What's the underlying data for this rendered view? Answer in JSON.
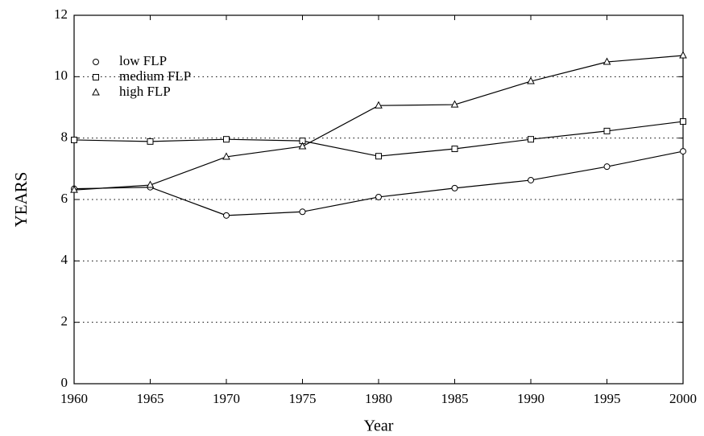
{
  "chart_data": {
    "type": "line",
    "xlabel": "Year",
    "ylabel": "YEARS",
    "x": [
      1960,
      1965,
      1970,
      1975,
      1980,
      1985,
      1990,
      1995,
      2000
    ],
    "series": [
      {
        "name": "low FLP",
        "color": "#000000",
        "marker": "circle",
        "values": [
          6.35,
          6.4,
          5.48,
          5.6,
          6.08,
          6.37,
          6.63,
          7.07,
          7.57
        ]
      },
      {
        "name": "medium FLP",
        "color": "#000000",
        "marker": "square",
        "values": [
          7.94,
          7.89,
          7.96,
          7.91,
          7.41,
          7.65,
          7.96,
          8.23,
          8.54
        ]
      },
      {
        "name": "high FLP",
        "color": "#000000",
        "marker": "triangle",
        "values": [
          6.31,
          6.47,
          7.39,
          7.73,
          9.06,
          9.09,
          9.85,
          10.48,
          10.69
        ]
      }
    ],
    "xlim": [
      1960,
      2000
    ],
    "xticks": [
      1960,
      1965,
      1970,
      1975,
      1980,
      1985,
      1990,
      1995,
      2000
    ],
    "ylim": [
      0,
      12
    ],
    "yticks": [
      0,
      2,
      4,
      6,
      8,
      10,
      12
    ],
    "grid": true,
    "legend": "upper left"
  }
}
